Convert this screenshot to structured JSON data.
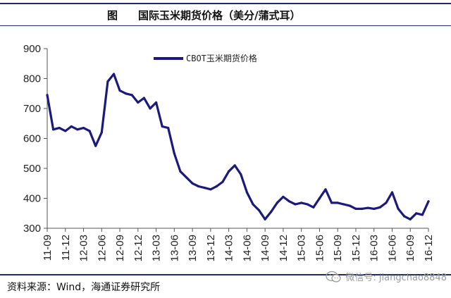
{
  "header": {
    "figure_label": "图",
    "title": "国际玉米期货价格（美分/蒲式耳）"
  },
  "chart_data": {
    "type": "line",
    "title": "国际玉米期货价格（美分/蒲式耳）",
    "xlabel": "",
    "ylabel": "",
    "ylim": [
      300,
      900
    ],
    "yticks": [
      300,
      400,
      500,
      600,
      700,
      800,
      900
    ],
    "xticks": [
      "11-09",
      "11-12",
      "12-03",
      "12-06",
      "12-09",
      "12-12",
      "13-03",
      "13-06",
      "13-09",
      "13-12",
      "14-03",
      "14-06",
      "14-09",
      "14-12",
      "15-03",
      "15-06",
      "15-09",
      "15-12",
      "16-03",
      "16-06",
      "16-09",
      "16-12"
    ],
    "grid": false,
    "legend_position": "top",
    "series": [
      {
        "name": "CBOT玉米期货价格",
        "color": "#1a1a7e",
        "x": [
          "11-09",
          "11-10",
          "11-11",
          "11-12",
          "12-01",
          "12-02",
          "12-03",
          "12-04",
          "12-05",
          "12-06",
          "12-07",
          "12-08",
          "12-09",
          "12-10",
          "12-11",
          "12-12",
          "13-01",
          "13-02",
          "13-03",
          "13-04",
          "13-05",
          "13-06",
          "13-07",
          "13-08",
          "13-09",
          "13-10",
          "13-11",
          "13-12",
          "14-01",
          "14-02",
          "14-03",
          "14-04",
          "14-05",
          "14-06",
          "14-07",
          "14-08",
          "14-09",
          "14-10",
          "14-11",
          "14-12",
          "15-01",
          "15-02",
          "15-03",
          "15-04",
          "15-05",
          "15-06",
          "15-07",
          "15-08",
          "15-09",
          "15-10",
          "15-11",
          "15-12",
          "16-01",
          "16-02",
          "16-03",
          "16-04",
          "16-05",
          "16-06",
          "16-07",
          "16-08",
          "16-09",
          "16-10",
          "16-11",
          "16-12"
        ],
        "values": [
          745,
          630,
          635,
          625,
          640,
          630,
          635,
          625,
          575,
          620,
          790,
          815,
          760,
          750,
          745,
          720,
          735,
          700,
          720,
          640,
          635,
          550,
          490,
          470,
          450,
          440,
          435,
          430,
          440,
          455,
          490,
          510,
          480,
          420,
          380,
          360,
          330,
          355,
          385,
          405,
          390,
          380,
          385,
          380,
          370,
          400,
          430,
          385,
          385,
          380,
          375,
          365,
          365,
          368,
          365,
          370,
          385,
          420,
          365,
          340,
          330,
          350,
          345,
          390
        ]
      }
    ]
  },
  "footer": {
    "source": "资料来源：Wind，海通证券研究所",
    "watermark": "微信号: jiangchao8848",
    "watermark_icon": "wechat-icon"
  }
}
